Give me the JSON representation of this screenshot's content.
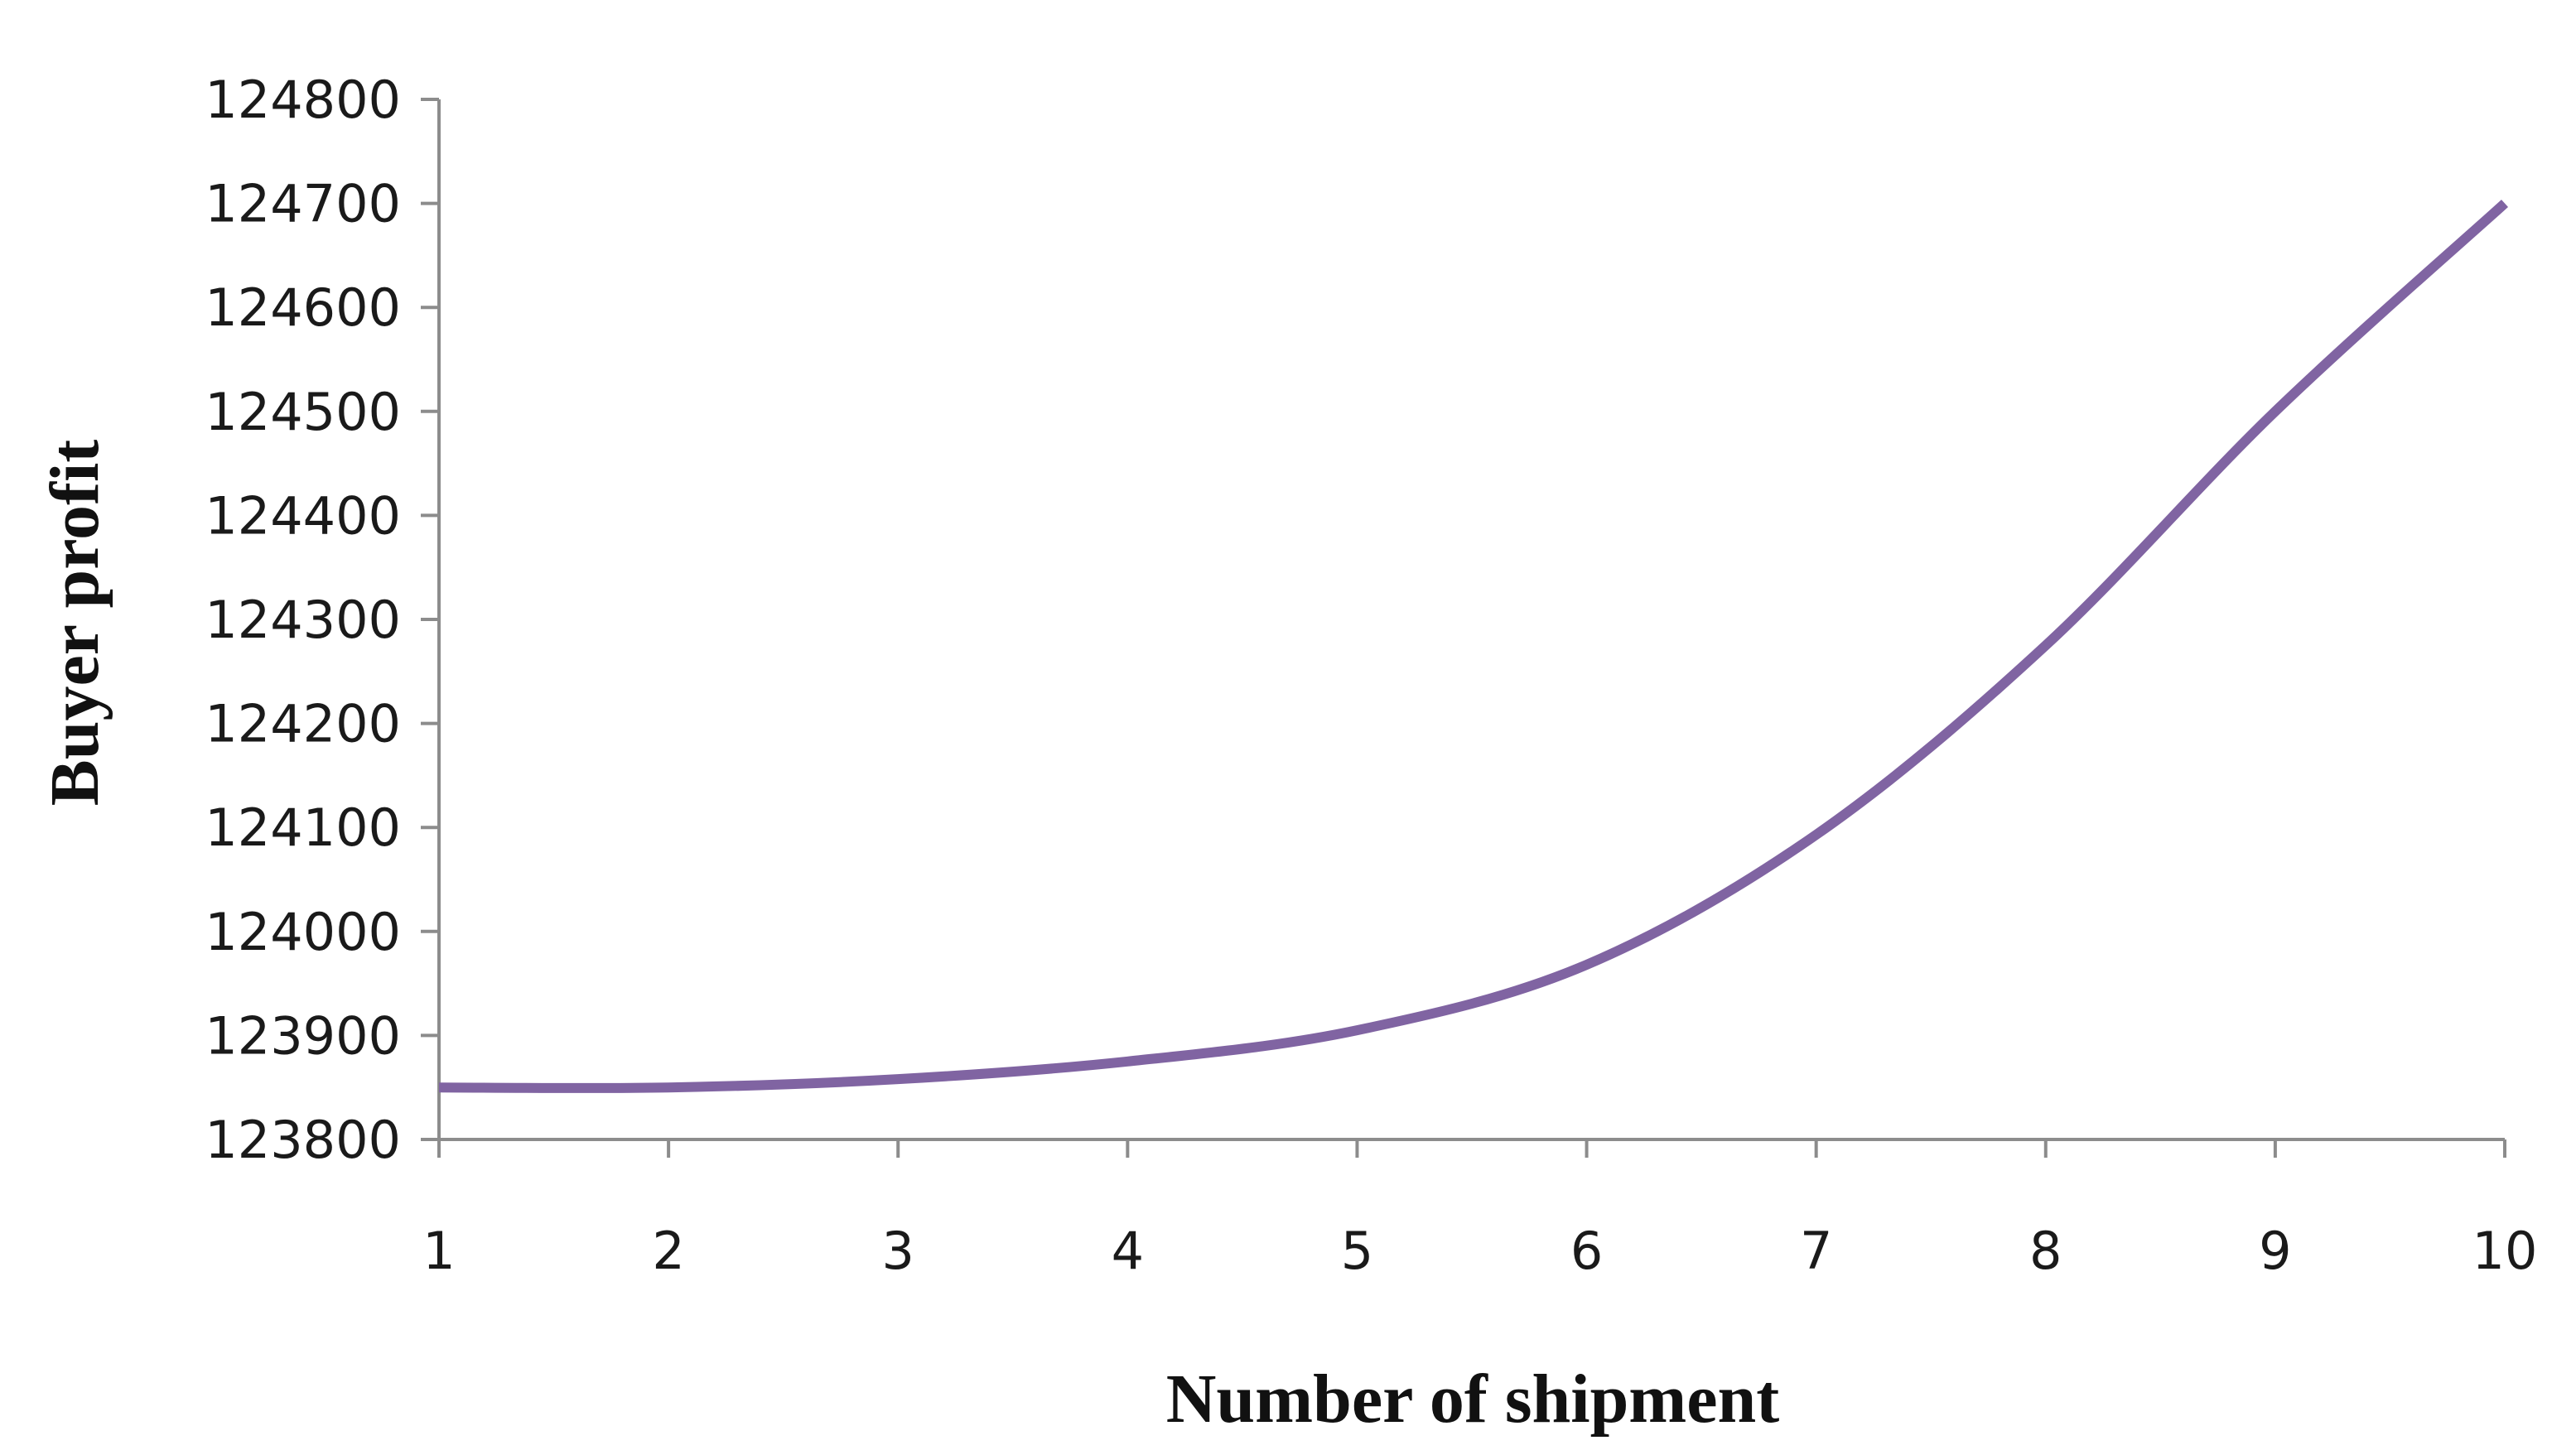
{
  "chart_data": {
    "type": "line",
    "title": "",
    "xlabel": "Number of shipment",
    "ylabel": "Buyer profit",
    "x": [
      1,
      2,
      3,
      4,
      5,
      6,
      7,
      8,
      9,
      10
    ],
    "xticks": [
      "1",
      "2",
      "3",
      "4",
      "5",
      "6",
      "7",
      "8",
      "9",
      "10"
    ],
    "yticks": [
      "123800",
      "123900",
      "124000",
      "124100",
      "124200",
      "124300",
      "124400",
      "124500",
      "124600",
      "124700",
      "124800"
    ],
    "ylim": [
      123800,
      124800
    ],
    "xlim": [
      1,
      10
    ],
    "grid": false,
    "legend": "none",
    "series": [
      {
        "color": "#8064A2",
        "values": [
          123850,
          123850,
          123858,
          123875,
          123905,
          123968,
          124093,
          124275,
          124500,
          124700
        ]
      }
    ]
  }
}
